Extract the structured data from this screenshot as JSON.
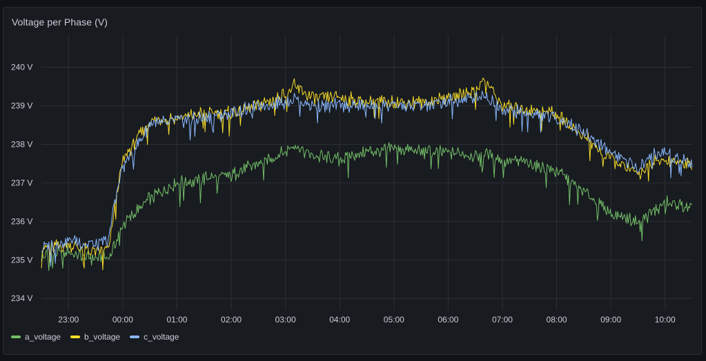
{
  "panel": {
    "title": "Voltage per Phase (V)"
  },
  "chart_data": {
    "type": "line",
    "title": "Voltage per Phase (V)",
    "y_ticks": [
      "234 V",
      "235 V",
      "236 V",
      "237 V",
      "238 V",
      "239 V",
      "240 V"
    ],
    "y_tick_values": [
      234,
      235,
      236,
      237,
      238,
      239,
      240
    ],
    "x_ticks": [
      "23:00",
      "00:00",
      "01:00",
      "02:00",
      "03:00",
      "04:00",
      "05:00",
      "06:00",
      "07:00",
      "08:00",
      "09:00",
      "10:00"
    ],
    "ylim": [
      233.7,
      240.85
    ],
    "xlim": [
      "22:30",
      "10:30"
    ],
    "grid": true,
    "legend_position": "bottom-left",
    "x": [
      "22:30",
      "23:00",
      "23:30",
      "23:45",
      "23:50",
      "00:00",
      "00:30",
      "01:00",
      "01:30",
      "02:00",
      "02:30",
      "03:00",
      "03:10",
      "03:30",
      "04:00",
      "04:30",
      "05:00",
      "05:30",
      "06:00",
      "06:30",
      "06:40",
      "07:00",
      "07:30",
      "08:00",
      "08:30",
      "09:00",
      "09:30",
      "09:45",
      "10:00",
      "10:30"
    ],
    "series": [
      {
        "name": "a_voltage",
        "color": "#73bf69",
        "values": [
          235.1,
          235.2,
          235.0,
          235.1,
          235.3,
          235.9,
          236.6,
          237.0,
          237.1,
          237.2,
          237.5,
          237.8,
          238.0,
          237.7,
          237.6,
          237.8,
          237.9,
          237.8,
          237.8,
          237.7,
          237.8,
          237.6,
          237.5,
          237.3,
          236.8,
          236.2,
          236.0,
          236.2,
          236.5,
          236.3
        ]
      },
      {
        "name": "b_voltage",
        "color": "#fade2a",
        "values": [
          235.3,
          235.4,
          235.2,
          235.3,
          236.2,
          237.6,
          238.6,
          238.7,
          238.8,
          238.8,
          239.0,
          239.3,
          239.5,
          239.2,
          239.2,
          239.1,
          239.1,
          239.1,
          239.2,
          239.4,
          239.7,
          239.0,
          238.9,
          238.8,
          238.2,
          237.6,
          237.2,
          237.5,
          237.6,
          237.5
        ]
      },
      {
        "name": "c_voltage",
        "color": "#8ab8ff",
        "values": [
          235.3,
          235.5,
          235.4,
          235.5,
          236.4,
          237.4,
          238.5,
          238.6,
          238.7,
          238.8,
          239.0,
          239.1,
          239.2,
          239.0,
          239.0,
          239.0,
          239.0,
          239.0,
          239.1,
          239.2,
          239.3,
          238.9,
          238.8,
          238.7,
          238.3,
          237.8,
          237.4,
          237.7,
          237.8,
          237.5
        ]
      }
    ]
  }
}
